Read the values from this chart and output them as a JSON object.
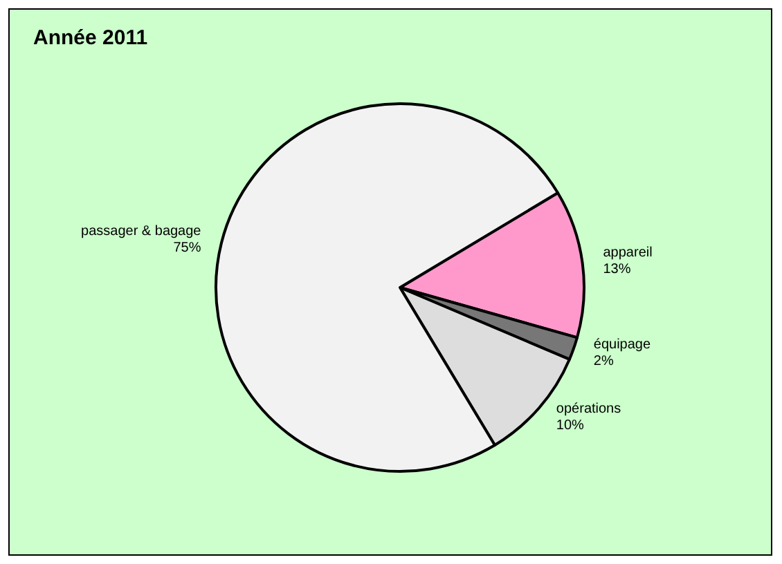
{
  "chart_data": {
    "type": "pie",
    "title": "Année 2011",
    "categories": [
      "appareil",
      "équipage",
      "opérations",
      "passager & bagage"
    ],
    "values": [
      13,
      2,
      10,
      75
    ],
    "value_labels": [
      "13%",
      "2%",
      "10%",
      "75%"
    ],
    "colors": [
      "#ff99cc",
      "#777777",
      "#dddddd",
      "#f2f2f2"
    ]
  }
}
